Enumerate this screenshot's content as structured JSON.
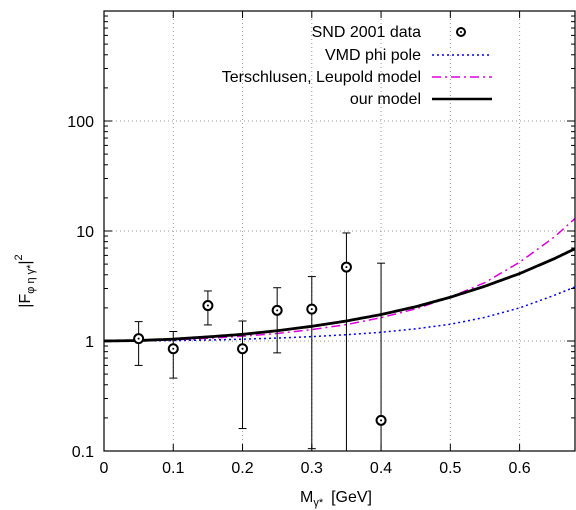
{
  "chart_data": {
    "type": "scatter",
    "x_axis": {
      "label": "M",
      "label_sub": "γ*",
      "unit": "[GeV]",
      "range": [
        0,
        0.68
      ],
      "ticks": [
        {
          "value": 0,
          "label": "0"
        },
        {
          "value": 0.1,
          "label": "0.1"
        },
        {
          "value": 0.2,
          "label": "0.2"
        },
        {
          "value": 0.3,
          "label": "0.3"
        },
        {
          "value": 0.4,
          "label": "0.4"
        },
        {
          "value": 0.5,
          "label": "0.5"
        },
        {
          "value": 0.6,
          "label": "0.6"
        }
      ]
    },
    "y_axis": {
      "label": "|F",
      "label_sub": "φ η γ*",
      "label_end": "|",
      "label_sup": "2",
      "scale": "log",
      "range": [
        0.1,
        1000
      ],
      "ticks": [
        {
          "value": 0.1,
          "label": "0.1"
        },
        {
          "value": 1,
          "label": "1"
        },
        {
          "value": 10,
          "label": "10"
        },
        {
          "value": 100,
          "label": "100"
        }
      ]
    },
    "grid": true,
    "legend_position": "top-right",
    "legend": [
      {
        "key": "data",
        "label": "SND 2001 data"
      },
      {
        "key": "vmd",
        "label": "VMD phi pole"
      },
      {
        "key": "tl",
        "label": "Terschlusen, Leupold model"
      },
      {
        "key": "ours",
        "label": "our model"
      }
    ],
    "data_points": [
      {
        "x": 0.05,
        "y": 1.05,
        "y_low": 0.6,
        "y_high": 1.5
      },
      {
        "x": 0.1,
        "y": 0.85,
        "y_low": 0.46,
        "y_high": 1.22
      },
      {
        "x": 0.15,
        "y": 2.1,
        "y_low": 1.4,
        "y_high": 2.85
      },
      {
        "x": 0.2,
        "y": 0.85,
        "y_low": 0.16,
        "y_high": 1.52
      },
      {
        "x": 0.25,
        "y": 1.9,
        "y_low": 0.78,
        "y_high": 3.05
      },
      {
        "x": 0.3,
        "y": 1.95,
        "y_low": 0.105,
        "y_high": 3.85
      },
      {
        "x": 0.35,
        "y": 4.7,
        "y_low": 0.1,
        "y_high": 9.6
      },
      {
        "x": 0.4,
        "y": 0.19,
        "y_low": 0.1,
        "y_high": 5.1
      }
    ],
    "curves": [
      {
        "key": "vmd",
        "color": "#0000ee",
        "style": "dotted",
        "x": [
          0,
          0.05,
          0.1,
          0.15,
          0.2,
          0.25,
          0.3,
          0.35,
          0.4,
          0.45,
          0.5,
          0.55,
          0.6,
          0.65,
          0.68
        ],
        "y": [
          1.0,
          1.002,
          1.009,
          1.021,
          1.039,
          1.063,
          1.096,
          1.14,
          1.2,
          1.29,
          1.42,
          1.64,
          2.0,
          2.6,
          3.1
        ]
      },
      {
        "key": "tl",
        "color": "#dd00dd",
        "style": "dash-dot",
        "x": [
          0,
          0.05,
          0.1,
          0.15,
          0.2,
          0.25,
          0.3,
          0.35,
          0.4,
          0.45,
          0.5,
          0.55,
          0.6,
          0.65,
          0.68
        ],
        "y": [
          1.0,
          1.006,
          1.025,
          1.058,
          1.105,
          1.17,
          1.27,
          1.41,
          1.63,
          1.96,
          2.5,
          3.4,
          5.2,
          8.8,
          13.0
        ]
      },
      {
        "key": "ours",
        "color": "#000000",
        "style": "solid",
        "x": [
          0,
          0.05,
          0.1,
          0.15,
          0.2,
          0.25,
          0.3,
          0.35,
          0.4,
          0.45,
          0.5,
          0.55,
          0.6,
          0.65,
          0.68
        ],
        "y": [
          1.0,
          1.01,
          1.04,
          1.09,
          1.15,
          1.24,
          1.36,
          1.52,
          1.74,
          2.05,
          2.5,
          3.15,
          4.1,
          5.6,
          6.9
        ]
      }
    ]
  }
}
